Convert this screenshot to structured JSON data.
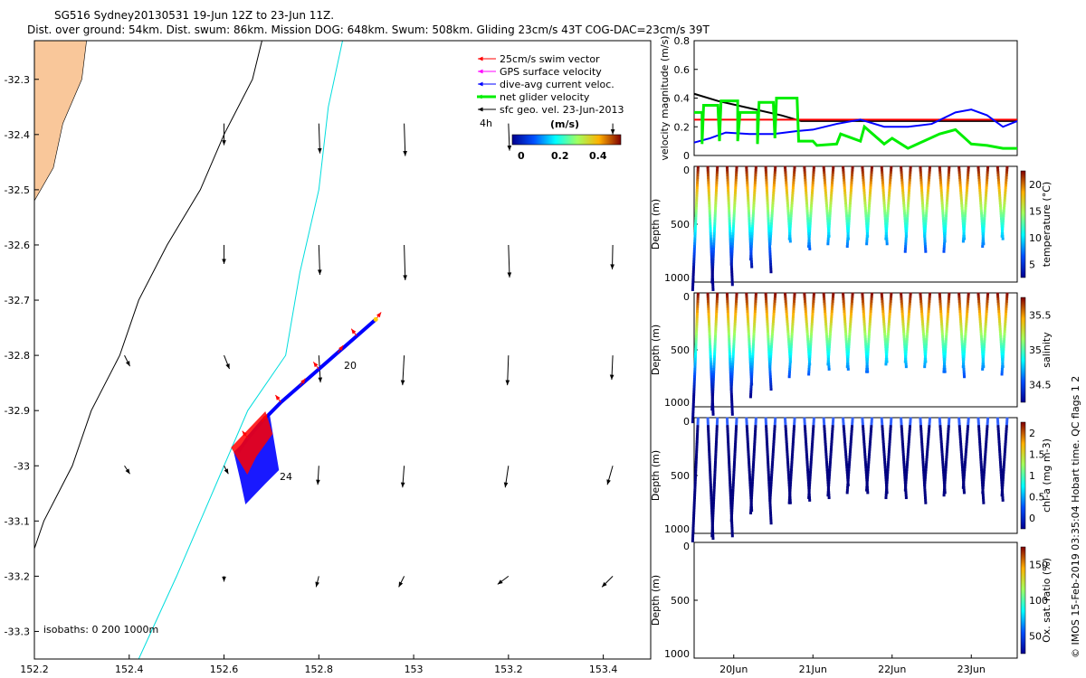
{
  "header": {
    "line1": "SG516 Sydney20130531 19-Jun 12Z to 23-Jun 11Z.",
    "line2": "Dist. over ground: 54km. Dist. swum: 86km. Mission DOG: 648km. Swum: 508km. Gliding 23cm/s 43T COG-DAC=23cm/s 39T"
  },
  "side_note": "© IMOS 15-Feb-2019 03:35:04 Hobart time. QC flags 1  2",
  "colors": {
    "land": "#f9c79a",
    "swim": "#ff0000",
    "gps": "#ff00ff",
    "dac": "#0000ff",
    "net": "#00ee00",
    "geo": "#000000",
    "shelf": "#00dddd",
    "isobath": "#000000"
  },
  "chart_data": [
    {
      "type": "map",
      "xlim": [
        152.2,
        153.5
      ],
      "ylim": [
        -33.35,
        -32.23
      ],
      "x_ticks": [
        "152.2",
        "152.4",
        "152.6",
        "152.8",
        "153",
        "153.2",
        "153.4"
      ],
      "y_ticks": [
        "-32.3",
        "-32.4",
        "-32.5",
        "-32.6",
        "-32.7",
        "-32.8",
        "-32.9",
        "-33",
        "-33.1",
        "-33.2",
        "-33.3"
      ],
      "legend": [
        {
          "label": "25cm/s swim vector",
          "color": "#ff0000"
        },
        {
          "label": "GPS surface velocity",
          "color": "#ff00ff"
        },
        {
          "label": "dive-avg current veloc.",
          "color": "#0000ff"
        },
        {
          "label": "net glider velocity",
          "color": "#00ee00"
        },
        {
          "label": "sfc geo. vel. 23-Jun-2013",
          "color": "#000000"
        }
      ],
      "time_label": "4h",
      "colorbar": {
        "label": "(m/s)",
        "ticks": [
          "0",
          "0.2",
          "0.4"
        ],
        "range": [
          0,
          0.5
        ]
      },
      "track_labels": [
        "20",
        "24"
      ],
      "isobath_label": "isobaths: 0   200  1000m",
      "track": [
        [
          152.92,
          -32.735
        ],
        [
          152.88,
          -32.765
        ],
        [
          152.84,
          -32.795
        ],
        [
          152.8,
          -32.825
        ],
        [
          152.76,
          -32.855
        ],
        [
          152.72,
          -32.885
        ],
        [
          152.68,
          -32.92
        ],
        [
          152.65,
          -32.95
        ],
        [
          152.63,
          -32.975
        ]
      ],
      "coast_lon_at": [
        [
          -32.23,
          152.31
        ],
        [
          -32.3,
          152.3
        ],
        [
          -32.38,
          152.26
        ],
        [
          -32.46,
          152.24
        ],
        [
          -32.52,
          152.2
        ],
        [
          -32.58,
          152.2
        ]
      ],
      "isobath_200": [
        [
          152.68,
          -32.23
        ],
        [
          152.66,
          -32.3
        ],
        [
          152.6,
          -32.4
        ],
        [
          152.55,
          -32.5
        ],
        [
          152.48,
          -32.6
        ],
        [
          152.42,
          -32.7
        ],
        [
          152.38,
          -32.8
        ],
        [
          152.32,
          -32.9
        ],
        [
          152.28,
          -33.0
        ],
        [
          152.22,
          -33.1
        ],
        [
          152.2,
          -33.15
        ]
      ],
      "isobath_1000": [
        [
          152.85,
          -32.23
        ],
        [
          152.82,
          -32.35
        ],
        [
          152.8,
          -32.5
        ],
        [
          152.76,
          -32.65
        ],
        [
          152.73,
          -32.8
        ],
        [
          152.65,
          -32.9
        ],
        [
          152.6,
          -33.0
        ],
        [
          152.55,
          -33.1
        ],
        [
          152.5,
          -33.2
        ],
        [
          152.42,
          -33.35
        ]
      ],
      "geo_vectors": [
        {
          "lon": 152.6,
          "lat": -32.38,
          "u": 0.0,
          "v": -0.4
        },
        {
          "lon": 152.8,
          "lat": -32.38,
          "u": 0.02,
          "v": -0.55
        },
        {
          "lon": 152.98,
          "lat": -32.38,
          "u": 0.02,
          "v": -0.6
        },
        {
          "lon": 153.2,
          "lat": -32.38,
          "u": 0.02,
          "v": -0.5
        },
        {
          "lon": 153.42,
          "lat": -32.38,
          "u": 0.0,
          "v": -0.2
        },
        {
          "lon": 152.6,
          "lat": -32.6,
          "u": 0.0,
          "v": -0.35
        },
        {
          "lon": 152.8,
          "lat": -32.6,
          "u": 0.02,
          "v": -0.55
        },
        {
          "lon": 152.98,
          "lat": -32.6,
          "u": 0.02,
          "v": -0.65
        },
        {
          "lon": 153.2,
          "lat": -32.6,
          "u": 0.02,
          "v": -0.6
        },
        {
          "lon": 153.42,
          "lat": -32.6,
          "u": -0.01,
          "v": -0.45
        },
        {
          "lon": 152.39,
          "lat": -32.8,
          "u": 0.1,
          "v": -0.2
        },
        {
          "lon": 152.6,
          "lat": -32.8,
          "u": 0.1,
          "v": -0.25
        },
        {
          "lon": 152.8,
          "lat": -32.8,
          "u": 0.03,
          "v": -0.5
        },
        {
          "lon": 152.98,
          "lat": -32.8,
          "u": -0.03,
          "v": -0.55
        },
        {
          "lon": 153.2,
          "lat": -32.8,
          "u": -0.02,
          "v": -0.55
        },
        {
          "lon": 153.42,
          "lat": -32.8,
          "u": -0.02,
          "v": -0.45
        },
        {
          "lon": 152.39,
          "lat": -33.0,
          "u": 0.1,
          "v": -0.15
        },
        {
          "lon": 152.6,
          "lat": -33.0,
          "u": 0.08,
          "v": -0.15
        },
        {
          "lon": 152.8,
          "lat": -33.0,
          "u": -0.02,
          "v": -0.35
        },
        {
          "lon": 152.98,
          "lat": -33.0,
          "u": -0.03,
          "v": -0.4
        },
        {
          "lon": 153.2,
          "lat": -33.0,
          "u": -0.06,
          "v": -0.4
        },
        {
          "lon": 153.42,
          "lat": -33.0,
          "u": -0.1,
          "v": -0.35
        },
        {
          "lon": 152.6,
          "lat": -33.2,
          "u": 0.0,
          "v": -0.1
        },
        {
          "lon": 152.8,
          "lat": -33.2,
          "u": -0.05,
          "v": -0.2
        },
        {
          "lon": 152.98,
          "lat": -33.2,
          "u": -0.1,
          "v": -0.2
        },
        {
          "lon": 153.2,
          "lat": -33.2,
          "u": -0.2,
          "v": -0.15
        },
        {
          "lon": 153.42,
          "lat": -33.2,
          "u": -0.2,
          "v": -0.2
        }
      ]
    },
    {
      "type": "line",
      "ylabel": "velocity magnitude (m/s)",
      "ylim": [
        0,
        0.8
      ],
      "y_ticks": [
        "0",
        "0.2",
        "0.4",
        "0.6",
        "0.8"
      ],
      "x_days": [
        19.5,
        23.58
      ],
      "series": [
        {
          "color": "#000000",
          "points": [
            [
              19.5,
              0.43
            ],
            [
              19.8,
              0.38
            ],
            [
              20.2,
              0.33
            ],
            [
              20.6,
              0.28
            ],
            [
              20.85,
              0.24
            ],
            [
              23.58,
              0.24
            ]
          ]
        },
        {
          "color": "#ff0000",
          "points": [
            [
              19.5,
              0.25
            ],
            [
              23.58,
              0.25
            ]
          ]
        },
        {
          "color": "#0000ff",
          "points": [
            [
              19.5,
              0.09
            ],
            [
              19.7,
              0.12
            ],
            [
              19.9,
              0.16
            ],
            [
              20.2,
              0.15
            ],
            [
              20.5,
              0.15
            ],
            [
              20.8,
              0.17
            ],
            [
              21.0,
              0.18
            ],
            [
              21.3,
              0.22
            ],
            [
              21.6,
              0.25
            ],
            [
              21.9,
              0.2
            ],
            [
              22.2,
              0.2
            ],
            [
              22.5,
              0.22
            ],
            [
              22.8,
              0.3
            ],
            [
              23.0,
              0.32
            ],
            [
              23.2,
              0.28
            ],
            [
              23.4,
              0.2
            ],
            [
              23.58,
              0.24
            ]
          ]
        },
        {
          "color": "#00ee00",
          "points": [
            [
              19.5,
              0.3
            ],
            [
              19.6,
              0.3
            ],
            [
              19.6,
              0.08
            ],
            [
              19.62,
              0.35
            ],
            [
              19.8,
              0.35
            ],
            [
              19.82,
              0.1
            ],
            [
              19.84,
              0.38
            ],
            [
              20.05,
              0.38
            ],
            [
              20.05,
              0.1
            ],
            [
              20.08,
              0.3
            ],
            [
              20.3,
              0.3
            ],
            [
              20.3,
              0.08
            ],
            [
              20.32,
              0.37
            ],
            [
              20.5,
              0.37
            ],
            [
              20.52,
              0.12
            ],
            [
              20.54,
              0.4
            ],
            [
              20.8,
              0.4
            ],
            [
              20.82,
              0.1
            ],
            [
              20.84,
              0.1
            ],
            [
              21.0,
              0.1
            ],
            [
              21.05,
              0.07
            ],
            [
              21.3,
              0.08
            ],
            [
              21.35,
              0.15
            ],
            [
              21.6,
              0.1
            ],
            [
              21.65,
              0.2
            ],
            [
              21.9,
              0.08
            ],
            [
              22.0,
              0.12
            ],
            [
              22.2,
              0.05
            ],
            [
              22.4,
              0.1
            ],
            [
              22.6,
              0.15
            ],
            [
              22.8,
              0.18
            ],
            [
              23.0,
              0.08
            ],
            [
              23.2,
              0.07
            ],
            [
              23.4,
              0.05
            ],
            [
              23.58,
              0.05
            ]
          ]
        }
      ]
    },
    {
      "type": "scatter",
      "ylabel": "Depth (m)",
      "cbar_label": "temperature (°C)",
      "cbar_ticks": [
        "5",
        "10",
        "15",
        "20"
      ],
      "ylim": [
        1000,
        0
      ],
      "y_ticks": [
        "0",
        "500",
        "1000"
      ]
    },
    {
      "type": "scatter",
      "ylabel": "Depth (m)",
      "cbar_label": "salinity",
      "cbar_ticks": [
        "34.5",
        "35",
        "35.5"
      ],
      "ylim": [
        1000,
        0
      ],
      "y_ticks": [
        "0",
        "500",
        "1000"
      ]
    },
    {
      "type": "scatter",
      "ylabel": "Depth (m)",
      "cbar_label": "chl-a (mg m-3)",
      "cbar_ticks": [
        "0",
        "0.5",
        "1",
        "1.5",
        "2"
      ],
      "ylim": [
        1000,
        0
      ],
      "y_ticks": [
        "0",
        "500",
        "1000"
      ]
    },
    {
      "type": "scatter",
      "ylabel": "Depth (m)",
      "cbar_label": "Ox. sat. ratio (%)",
      "cbar_ticks": [
        "50",
        "100",
        "150"
      ],
      "ylim": [
        1000,
        0
      ],
      "y_ticks": [
        "0",
        "500",
        "1000"
      ],
      "x_ticks": [
        "20Jun",
        "21Jun",
        "22Jun",
        "23Jun"
      ]
    }
  ]
}
